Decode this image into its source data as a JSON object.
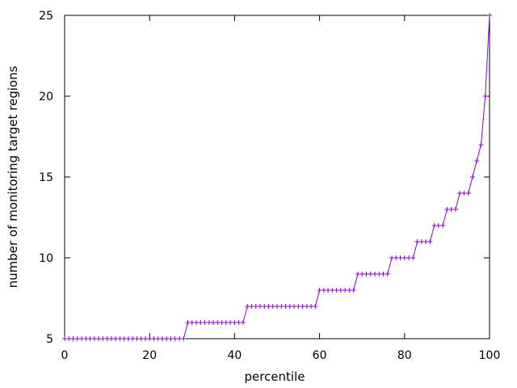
{
  "chart_data": {
    "type": "line",
    "xlabel": "percentile",
    "ylabel": "number of monitoring target regions",
    "xlim": [
      0,
      100
    ],
    "ylim": [
      5,
      25
    ],
    "x_ticks": [
      0,
      20,
      40,
      60,
      80,
      100
    ],
    "y_ticks": [
      5,
      10,
      15,
      20,
      25
    ],
    "grid": false,
    "marker": "plus",
    "colors": {
      "series": "#9400d3",
      "axes": "#000000"
    },
    "series": [
      {
        "values": [
          [
            0,
            5
          ],
          [
            1,
            5
          ],
          [
            2,
            5
          ],
          [
            3,
            5
          ],
          [
            4,
            5
          ],
          [
            5,
            5
          ],
          [
            6,
            5
          ],
          [
            7,
            5
          ],
          [
            8,
            5
          ],
          [
            9,
            5
          ],
          [
            10,
            5
          ],
          [
            11,
            5
          ],
          [
            12,
            5
          ],
          [
            13,
            5
          ],
          [
            14,
            5
          ],
          [
            15,
            5
          ],
          [
            16,
            5
          ],
          [
            17,
            5
          ],
          [
            18,
            5
          ],
          [
            19,
            5
          ],
          [
            20,
            5
          ],
          [
            21,
            5
          ],
          [
            22,
            5
          ],
          [
            23,
            5
          ],
          [
            24,
            5
          ],
          [
            25,
            5
          ],
          [
            26,
            5
          ],
          [
            27,
            5
          ],
          [
            28,
            5
          ],
          [
            29,
            6
          ],
          [
            30,
            6
          ],
          [
            31,
            6
          ],
          [
            32,
            6
          ],
          [
            33,
            6
          ],
          [
            34,
            6
          ],
          [
            35,
            6
          ],
          [
            36,
            6
          ],
          [
            37,
            6
          ],
          [
            38,
            6
          ],
          [
            39,
            6
          ],
          [
            40,
            6
          ],
          [
            41,
            6
          ],
          [
            42,
            6
          ],
          [
            43,
            7
          ],
          [
            44,
            7
          ],
          [
            45,
            7
          ],
          [
            46,
            7
          ],
          [
            47,
            7
          ],
          [
            48,
            7
          ],
          [
            49,
            7
          ],
          [
            50,
            7
          ],
          [
            51,
            7
          ],
          [
            52,
            7
          ],
          [
            53,
            7
          ],
          [
            54,
            7
          ],
          [
            55,
            7
          ],
          [
            56,
            7
          ],
          [
            57,
            7
          ],
          [
            58,
            7
          ],
          [
            59,
            7
          ],
          [
            60,
            8
          ],
          [
            61,
            8
          ],
          [
            62,
            8
          ],
          [
            63,
            8
          ],
          [
            64,
            8
          ],
          [
            65,
            8
          ],
          [
            66,
            8
          ],
          [
            67,
            8
          ],
          [
            68,
            8
          ],
          [
            69,
            9
          ],
          [
            70,
            9
          ],
          [
            71,
            9
          ],
          [
            72,
            9
          ],
          [
            73,
            9
          ],
          [
            74,
            9
          ],
          [
            75,
            9
          ],
          [
            76,
            9
          ],
          [
            77,
            10
          ],
          [
            78,
            10
          ],
          [
            79,
            10
          ],
          [
            80,
            10
          ],
          [
            81,
            10
          ],
          [
            82,
            10
          ],
          [
            83,
            11
          ],
          [
            84,
            11
          ],
          [
            85,
            11
          ],
          [
            86,
            11
          ],
          [
            87,
            12
          ],
          [
            88,
            12
          ],
          [
            89,
            12
          ],
          [
            90,
            13
          ],
          [
            91,
            13
          ],
          [
            92,
            13
          ],
          [
            93,
            14
          ],
          [
            94,
            14
          ],
          [
            95,
            14
          ],
          [
            96,
            15
          ],
          [
            97,
            16
          ],
          [
            98,
            17
          ],
          [
            99,
            20
          ],
          [
            100,
            25
          ]
        ]
      }
    ]
  }
}
